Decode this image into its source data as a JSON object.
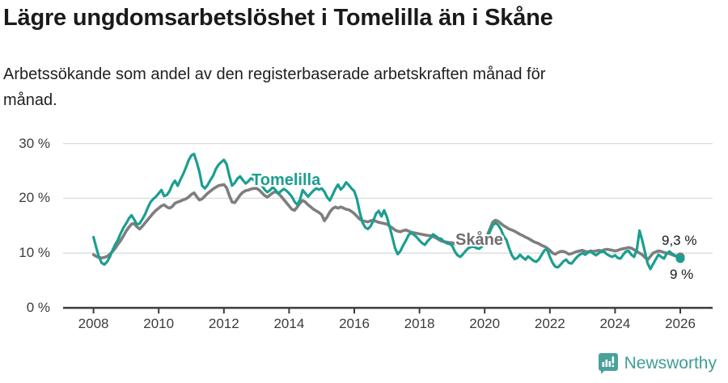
{
  "header": {
    "title": "Lägre ungdomsarbetslöshet i Tomelilla än i Skåne",
    "subtitle_line1": "Arbetssökande som andel av den registerbaserade arbetskraften månad för",
    "subtitle_line2": "månad."
  },
  "chart_data": {
    "type": "line",
    "title": "Lägre ungdomsarbetslöshet i Tomelilla än i Skåne",
    "xlabel": "",
    "ylabel": "",
    "unit": "%",
    "grid": "horizontal",
    "legend_position": "inline-labels",
    "xlim": [
      2007.1,
      2027.0
    ],
    "ylim": [
      0,
      32
    ],
    "x_ticks": [
      2008,
      2010,
      2012,
      2014,
      2016,
      2018,
      2020,
      2022,
      2024,
      2026
    ],
    "y_ticks": [
      {
        "label": "0 %",
        "value": 0
      },
      {
        "label": "10 %",
        "value": 10
      },
      {
        "label": "20 %",
        "value": 20
      },
      {
        "label": "30 %",
        "value": 30
      }
    ],
    "x_start_year": 2008,
    "x_step_months": 1,
    "series": [
      {
        "name": "Skåne",
        "color": "#7e7e7e",
        "line_width": 3.6,
        "end_label": "9,3 %",
        "end_value": 9.3,
        "values": [
          [
            9.7,
            9.4,
            9.2,
            9.1,
            9.2,
            9.4,
            9.8,
            10.3,
            10.9,
            11.6,
            12.3,
            13.1
          ],
          [
            14.0,
            14.7,
            15.3,
            15.4,
            14.8,
            14.4,
            14.9,
            15.5,
            16.1,
            16.7,
            17.3,
            17.8
          ],
          [
            18.2,
            18.6,
            18.8,
            18.4,
            18.2,
            18.5,
            19.1,
            19.3,
            19.5,
            19.7,
            19.9,
            20.2
          ],
          [
            20.7,
            21.0,
            20.3,
            19.7,
            19.9,
            20.4,
            20.9,
            21.3,
            21.7,
            22.0,
            22.3,
            22.4
          ],
          [
            22.5,
            21.9,
            20.5,
            19.3,
            19.2,
            19.9,
            20.6,
            21.1,
            21.4,
            21.5,
            21.7,
            21.8
          ],
          [
            21.8,
            21.5,
            21.0,
            20.5,
            20.2,
            20.6,
            21.0,
            21.2,
            20.9,
            20.4,
            19.8,
            19.2
          ],
          [
            18.6,
            18.0,
            17.8,
            18.4,
            19.1,
            19.6,
            19.3,
            18.8,
            18.4,
            18.0,
            17.7,
            17.4
          ],
          [
            17.0,
            15.9,
            16.6,
            17.5,
            18.1,
            18.4,
            18.2,
            18.4,
            18.2,
            18.0,
            17.9,
            17.6
          ],
          [
            17.2,
            16.7,
            16.2,
            15.9,
            15.8,
            15.7,
            15.9,
            16.0,
            15.8,
            15.6,
            15.5,
            15.4
          ],
          [
            15.3,
            14.9,
            14.6,
            14.2,
            14.0,
            13.9,
            14.1,
            14.2,
            14.0,
            13.8,
            13.7,
            13.6
          ],
          [
            13.5,
            13.4,
            13.3,
            13.2,
            13.2,
            13.0,
            12.8,
            12.5,
            12.2,
            12.1,
            12.0,
            11.9
          ],
          [
            11.9,
            11.7,
            11.5,
            11.6,
            11.8,
            11.8,
            11.7,
            11.6,
            11.7,
            11.9,
            12.1,
            12.4
          ],
          [
            12.7,
            13.3,
            14.5,
            15.7,
            16.0,
            15.8,
            15.4,
            15.0,
            14.7,
            14.4,
            14.2,
            14.0
          ],
          [
            13.7,
            13.4,
            13.2,
            12.9,
            12.7,
            12.4,
            12.1,
            11.9,
            11.7,
            11.4,
            11.2,
            10.9
          ],
          [
            10.5,
            10.0,
            9.8,
            10.1,
            10.3,
            10.3,
            10.1,
            9.8,
            9.9,
            10.1,
            10.3,
            10.4
          ],
          [
            10.5,
            10.3,
            10.2,
            10.4,
            10.3,
            10.4,
            10.5,
            10.4,
            10.6,
            10.7,
            10.6,
            10.5
          ],
          [
            10.4,
            10.5,
            10.7,
            10.8,
            10.9,
            11.0,
            10.9,
            10.6,
            10.3,
            10.0,
            9.7,
            9.2
          ],
          [
            8.8,
            9.4,
            10.0,
            10.2,
            10.4,
            10.3,
            10.1,
            10.0,
            9.9,
            9.7,
            9.5,
            9.4
          ],
          [
            9.3
          ]
        ]
      },
      {
        "name": "Tomelilla",
        "color": "#1b9e90",
        "line_width": 3.2,
        "end_label": "9 %",
        "end_value": 9.0,
        "values": [
          [
            12.9,
            11.0,
            9.3,
            8.2,
            7.9,
            8.4,
            9.3,
            10.5,
            11.6,
            12.4,
            13.6,
            14.6
          ],
          [
            15.4,
            16.3,
            16.9,
            16.1,
            15.2,
            15.4,
            16.2,
            17.1,
            18.3,
            19.3,
            19.9,
            20.3
          ],
          [
            20.9,
            21.5,
            20.4,
            20.6,
            21.3,
            22.5,
            23.2,
            22.3,
            23.4,
            24.4,
            25.6,
            26.9
          ],
          [
            27.8,
            28.1,
            26.6,
            24.8,
            22.3,
            21.8,
            22.4,
            23.3,
            24.1,
            25.3,
            26.1,
            26.6
          ],
          [
            27.0,
            26.2,
            24.1,
            22.3,
            22.8,
            23.6,
            24.0,
            23.3,
            22.7,
            23.1,
            23.7,
            23.3
          ],
          [
            22.8,
            23.2,
            22.3,
            21.6,
            21.1,
            21.5,
            22.0,
            21.5,
            20.9,
            21.3,
            21.7,
            21.4
          ],
          [
            20.9,
            20.3,
            19.4,
            18.8,
            19.7,
            21.5,
            20.9,
            20.3,
            20.9,
            21.4,
            21.8,
            21.6
          ],
          [
            21.8,
            21.2,
            20.2,
            19.6,
            20.6,
            21.7,
            22.5,
            21.6,
            22.1,
            22.9,
            22.4,
            21.8
          ],
          [
            21.3,
            19.8,
            17.5,
            15.6,
            14.7,
            14.4,
            14.9,
            15.9,
            17.2,
            17.7,
            16.7,
            17.8
          ],
          [
            16.6,
            14.8,
            12.9,
            10.9,
            9.8,
            10.4,
            11.4,
            12.3,
            13.3,
            13.7,
            13.3,
            12.9
          ],
          [
            12.3,
            11.8,
            11.5,
            12.2,
            12.7,
            13.4,
            13.1,
            12.7,
            12.6,
            12.1,
            11.8,
            11.7
          ],
          [
            11.4,
            10.3,
            9.6,
            9.3,
            9.8,
            10.4,
            10.9,
            11.1,
            11.2,
            10.9,
            10.8,
            11.2
          ],
          [
            11.9,
            12.8,
            14.0,
            15.1,
            15.5,
            15.1,
            14.3,
            13.1,
            12.4,
            10.9,
            9.6,
            8.9
          ],
          [
            9.1,
            9.7,
            9.2,
            8.8,
            9.4,
            9.0,
            8.6,
            8.4,
            8.9,
            9.7,
            10.5,
            10.7
          ],
          [
            9.3,
            8.2,
            7.5,
            7.4,
            7.9,
            8.5,
            8.8,
            8.2,
            8.1,
            8.7,
            9.3,
            9.7
          ],
          [
            10.0,
            9.7,
            10.1,
            10.3,
            9.9,
            9.6,
            10.0,
            10.3,
            10.2,
            9.8,
            9.5,
            9.3
          ],
          [
            9.6,
            9.1,
            9.0,
            9.7,
            10.3,
            10.4,
            9.7,
            9.3,
            10.6,
            14.1,
            12.3,
            10.2
          ],
          [
            8.1,
            7.1,
            8.0,
            8.9,
            9.7,
            9.3,
            9.0,
            9.9,
            10.3,
            9.9,
            9.6,
            9.2
          ],
          [
            9.0
          ]
        ]
      }
    ],
    "annotations": [
      {
        "text": "Tomelilla",
        "series": "Tomelilla"
      },
      {
        "text": "Skåne",
        "series": "Skåne"
      },
      {
        "text": "9,3 %",
        "series": "Skåne"
      },
      {
        "text": "9 %",
        "series": "Tomelilla"
      }
    ],
    "colors": {
      "tomelilla": "#1b9e90",
      "skane": "#7e7e7e",
      "gridline": "#dcdcdc",
      "axis": "#3c3c3c",
      "brand_teal": "#3f9d96"
    }
  },
  "footer": {
    "brand": "Newsworthy"
  }
}
